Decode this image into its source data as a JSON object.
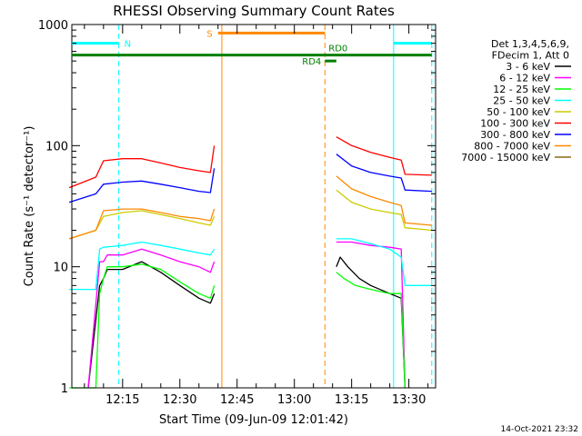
{
  "chart_data": {
    "type": "line",
    "title": "RHESSI Observing Summary Count Rates",
    "xlabel": "Start Time (09-Jun-09 12:01:42)",
    "ylabel": "Count Rate (s⁻¹ detector⁻¹)",
    "y_scale": "log",
    "ylim": [
      1,
      1000
    ],
    "x_ticks": [
      "12:15",
      "12:30",
      "12:45",
      "13:00",
      "13:15",
      "13:30"
    ],
    "y_ticks": [
      "1",
      "10",
      "100",
      "1000"
    ],
    "legend_position": "right",
    "legend_header": [
      "Det 1,3,4,5,6,9,",
      "FDecim 1, Att 0"
    ],
    "footer": "14-Oct-2021 23:32",
    "series": [
      {
        "name": "3 - 6 keV",
        "color": "#000000",
        "points": [
          [
            "12:06",
            0
          ],
          [
            "12:09",
            7
          ],
          [
            "12:10",
            8
          ],
          [
            "12:11",
            9.5
          ],
          [
            "12:15",
            9.5
          ],
          [
            "12:20",
            11
          ],
          [
            "12:25",
            9
          ],
          [
            "12:30",
            7
          ],
          [
            "12:35",
            5.5
          ],
          [
            "12:38",
            5
          ],
          [
            "12:39",
            6
          ],
          [
            "12:40",
            null
          ],
          [
            "13:10",
            null
          ],
          [
            "13:11",
            10
          ],
          [
            "13:12",
            12
          ],
          [
            "13:14",
            10
          ],
          [
            "13:17",
            8
          ],
          [
            "13:20",
            7
          ],
          [
            "13:25",
            6
          ],
          [
            "13:28",
            5.5
          ],
          [
            "13:29",
            0
          ]
        ]
      },
      {
        "name": "6 - 12 keV",
        "color": "#ff00ff",
        "points": [
          [
            "12:06",
            0
          ],
          [
            "12:09",
            11
          ],
          [
            "12:10",
            11
          ],
          [
            "12:11",
            12.5
          ],
          [
            "12:15",
            12.5
          ],
          [
            "12:20",
            14
          ],
          [
            "12:25",
            12.5
          ],
          [
            "12:30",
            11
          ],
          [
            "12:35",
            10
          ],
          [
            "12:38",
            9
          ],
          [
            "12:39",
            11
          ],
          [
            "12:40",
            null
          ],
          [
            "13:10",
            null
          ],
          [
            "13:11",
            16
          ],
          [
            "13:15",
            16
          ],
          [
            "13:20",
            15
          ],
          [
            "13:25",
            14.5
          ],
          [
            "13:28",
            14
          ],
          [
            "13:29",
            0
          ]
        ]
      },
      {
        "name": "12 - 25 keV",
        "color": "#00ff00",
        "points": [
          [
            "12:01",
            0
          ],
          [
            "12:08",
            0
          ],
          [
            "12:09",
            6
          ],
          [
            "12:10",
            8
          ],
          [
            "12:11",
            10
          ],
          [
            "12:15",
            10
          ],
          [
            "12:20",
            10.5
          ],
          [
            "12:25",
            9.5
          ],
          [
            "12:30",
            7.5
          ],
          [
            "12:35",
            6
          ],
          [
            "12:38",
            5.5
          ],
          [
            "12:39",
            7
          ],
          [
            "12:40",
            null
          ],
          [
            "13:10",
            null
          ],
          [
            "13:11",
            9
          ],
          [
            "13:13",
            8
          ],
          [
            "13:16",
            7
          ],
          [
            "13:20",
            6.5
          ],
          [
            "13:25",
            6
          ],
          [
            "13:28",
            6
          ],
          [
            "13:29",
            0
          ]
        ]
      },
      {
        "name": "25 - 50 keV",
        "color": "#00ffff",
        "points": [
          [
            "12:01",
            6.5
          ],
          [
            "12:08",
            6.5
          ],
          [
            "12:09",
            14
          ],
          [
            "12:10",
            14.5
          ],
          [
            "12:15",
            15
          ],
          [
            "12:20",
            16
          ],
          [
            "12:25",
            15
          ],
          [
            "12:30",
            14
          ],
          [
            "12:35",
            13
          ],
          [
            "12:38",
            12.5
          ],
          [
            "12:39",
            14
          ],
          [
            "12:40",
            null
          ],
          [
            "13:10",
            null
          ],
          [
            "13:11",
            17
          ],
          [
            "13:15",
            17
          ],
          [
            "13:20",
            15.5
          ],
          [
            "13:25",
            14
          ],
          [
            "13:28",
            12
          ],
          [
            "13:29",
            7
          ],
          [
            "13:36",
            7
          ]
        ]
      },
      {
        "name": "50 - 100 keV",
        "color": "#cccc00",
        "points": [
          [
            "12:01",
            17
          ],
          [
            "12:08",
            20
          ],
          [
            "12:10",
            26
          ],
          [
            "12:15",
            28
          ],
          [
            "12:20",
            29
          ],
          [
            "12:25",
            27
          ],
          [
            "12:30",
            25
          ],
          [
            "12:35",
            23
          ],
          [
            "12:38",
            22
          ],
          [
            "12:39",
            26
          ],
          [
            "12:40",
            null
          ],
          [
            "13:10",
            null
          ],
          [
            "13:11",
            43
          ],
          [
            "13:15",
            34
          ],
          [
            "13:20",
            30
          ],
          [
            "13:25",
            28
          ],
          [
            "13:28",
            27
          ],
          [
            "13:29",
            21
          ],
          [
            "13:36",
            20
          ]
        ]
      },
      {
        "name": "100 - 300 keV",
        "color": "#ff0000",
        "points": [
          [
            "12:01",
            45
          ],
          [
            "12:08",
            55
          ],
          [
            "12:10",
            75
          ],
          [
            "12:15",
            78
          ],
          [
            "12:20",
            78
          ],
          [
            "12:25",
            72
          ],
          [
            "12:30",
            66
          ],
          [
            "12:35",
            62
          ],
          [
            "12:38",
            60
          ],
          [
            "12:39",
            100
          ],
          [
            "12:40",
            null
          ],
          [
            "13:10",
            null
          ],
          [
            "13:11",
            118
          ],
          [
            "13:15",
            100
          ],
          [
            "13:20",
            88
          ],
          [
            "13:25",
            80
          ],
          [
            "13:28",
            76
          ],
          [
            "13:29",
            58
          ],
          [
            "13:36",
            57
          ]
        ]
      },
      {
        "name": "300 - 800 keV",
        "color": "#0000ff",
        "points": [
          [
            "12:01",
            34
          ],
          [
            "12:08",
            40
          ],
          [
            "12:10",
            48
          ],
          [
            "12:15",
            50
          ],
          [
            "12:20",
            51
          ],
          [
            "12:25",
            48
          ],
          [
            "12:30",
            45
          ],
          [
            "12:35",
            42
          ],
          [
            "12:38",
            41
          ],
          [
            "12:39",
            65
          ],
          [
            "12:40",
            null
          ],
          [
            "13:10",
            null
          ],
          [
            "13:11",
            85
          ],
          [
            "13:15",
            68
          ],
          [
            "13:20",
            60
          ],
          [
            "13:25",
            56
          ],
          [
            "13:28",
            54
          ],
          [
            "13:29",
            43
          ],
          [
            "13:36",
            42
          ]
        ]
      },
      {
        "name": "800 - 7000 keV",
        "color": "#ff8800",
        "points": [
          [
            "12:01",
            17
          ],
          [
            "12:08",
            20
          ],
          [
            "12:10",
            29
          ],
          [
            "12:15",
            30
          ],
          [
            "12:20",
            30
          ],
          [
            "12:25",
            28
          ],
          [
            "12:30",
            26
          ],
          [
            "12:35",
            25
          ],
          [
            "12:38",
            24
          ],
          [
            "12:39",
            30
          ],
          [
            "12:40",
            null
          ],
          [
            "13:10",
            null
          ],
          [
            "13:11",
            56
          ],
          [
            "13:15",
            44
          ],
          [
            "13:20",
            38
          ],
          [
            "13:25",
            34
          ],
          [
            "13:28",
            32
          ],
          [
            "13:29",
            23
          ],
          [
            "13:36",
            22
          ]
        ]
      },
      {
        "name": "7000 - 15000 keV",
        "color": "#8b6914",
        "points": []
      }
    ],
    "flags": [
      {
        "label": "N",
        "color": "#00ffff",
        "y": 700,
        "segments": [
          [
            "12:01",
            "12:14"
          ],
          [
            "13:26",
            "13:36"
          ]
        ]
      },
      {
        "label": "S",
        "color": "#ff8800",
        "y": 850,
        "segments": [
          [
            "12:40",
            "13:08"
          ]
        ]
      },
      {
        "label": "RD0",
        "color": "#008000",
        "y": 560,
        "segments": [
          [
            "12:01",
            "13:36"
          ]
        ]
      },
      {
        "label": "RD4",
        "color": "#008000",
        "y": 500,
        "segments": [
          [
            "13:08",
            "13:11"
          ]
        ]
      }
    ],
    "markers": [
      {
        "time": "12:14",
        "color": "#00ffff",
        "style": "dashed"
      },
      {
        "time": "12:41",
        "color": "#ff8800",
        "style": "solid"
      },
      {
        "time": "13:08",
        "color": "#ff8800",
        "style": "dashed"
      },
      {
        "time": "13:26",
        "color": "#00ffff",
        "style": "solid"
      },
      {
        "time": "13:36",
        "color": "#00ffff",
        "style": "dashed"
      }
    ]
  }
}
